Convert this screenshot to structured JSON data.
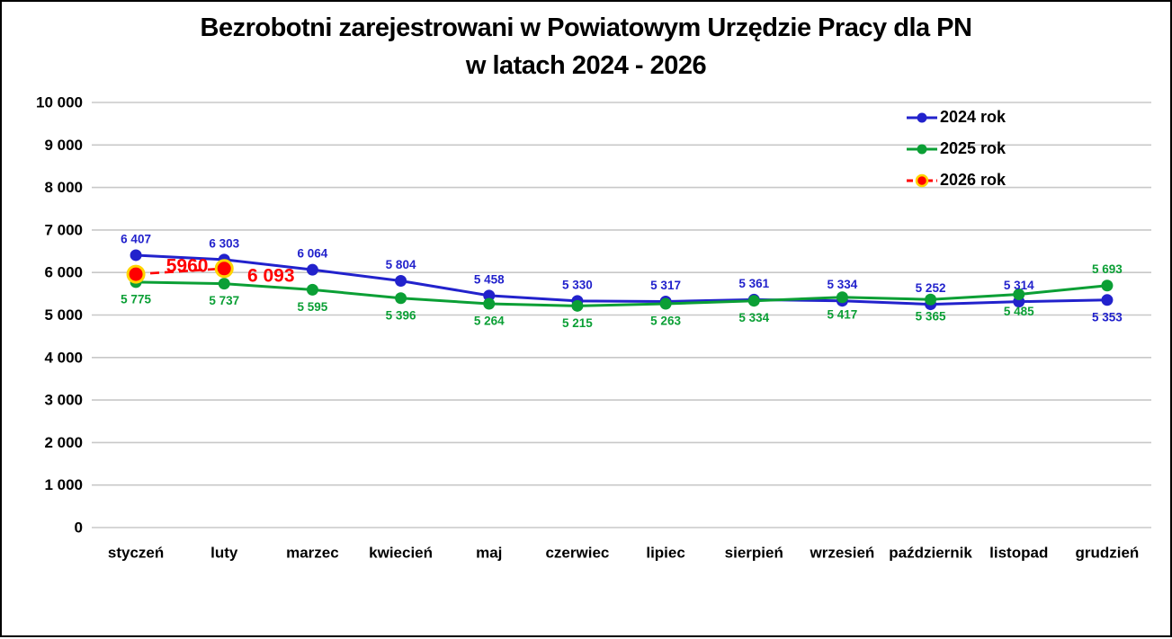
{
  "title": {
    "line1": "Bezrobotni zarejestrowani w Powiatowym Urzędzie Pracy dla PN",
    "line2": "w latach 2024 - 2026"
  },
  "chart_data": {
    "type": "line",
    "title": "Bezrobotni zarejestrowani w Powiatowym Urzędzie Pracy dla PN w latach 2024 - 2026",
    "categories": [
      "styczeń",
      "luty",
      "marzec",
      "kwiecień",
      "maj",
      "czerwiec",
      "lipiec",
      "sierpień",
      "wrzesień",
      "październik",
      "listopad",
      "grudzień"
    ],
    "ylim": [
      0,
      10000
    ],
    "grid": {
      "horizontal": true,
      "color": "#C8C8C8"
    },
    "legend_position": "top-right",
    "y_ticks": [
      {
        "v": 10000,
        "label": "10 000"
      },
      {
        "v": 9000,
        "label": "9 000"
      },
      {
        "v": 8000,
        "label": "8 000"
      },
      {
        "v": 7000,
        "label": "7 000"
      },
      {
        "v": 6000,
        "label": "6 000"
      },
      {
        "v": 5000,
        "label": "5 000"
      },
      {
        "v": 4000,
        "label": "4 000"
      },
      {
        "v": 3000,
        "label": "3 000"
      },
      {
        "v": 2000,
        "label": "2 000"
      },
      {
        "v": 1000,
        "label": "1 000"
      },
      {
        "v": 0,
        "label": "0"
      }
    ],
    "series": [
      {
        "name": "2024 rok",
        "color": "#2222CC",
        "line_style": "solid",
        "values": [
          6407,
          6303,
          6064,
          5804,
          5458,
          5330,
          5317,
          5361,
          5334,
          5252,
          5314,
          5353
        ],
        "labels": [
          "6 407",
          "6 303",
          "6 064",
          "5 804",
          "5 458",
          "5 330",
          "5 317",
          "5 361",
          "5 334",
          "5 252",
          "5 314",
          "5 353"
        ],
        "label_side": [
          "above",
          "above",
          "above",
          "above",
          "above",
          "above",
          "above",
          "above",
          "above",
          "above",
          "above",
          "below"
        ]
      },
      {
        "name": "2025 rok",
        "color": "#0B9F35",
        "line_style": "solid",
        "values": [
          5775,
          5737,
          5595,
          5396,
          5264,
          5215,
          5263,
          5334,
          5417,
          5365,
          5485,
          5693
        ],
        "labels": [
          "5 775",
          "5 737",
          "5 595",
          "5 396",
          "5 264",
          "5 215",
          "5 263",
          "5 334",
          "5 417",
          "5 365",
          "5 485",
          "5 693"
        ],
        "label_side": [
          "below",
          "below",
          "below",
          "below",
          "below",
          "below",
          "below",
          "below",
          "below",
          "below",
          "below",
          "above"
        ]
      },
      {
        "name": "2026 rok",
        "color": "#FF0000",
        "marker_ring": "#FFD400",
        "line_style": "dashed",
        "emphasized": true,
        "values": [
          5960,
          6093,
          null,
          null,
          null,
          null,
          null,
          null,
          null,
          null,
          null,
          null
        ],
        "labels": [
          "5960",
          "6 093",
          "",
          "",
          "",
          "",
          "",
          "",
          "",
          "",
          "",
          ""
        ],
        "label_offsets": [
          [
            57,
            -9
          ],
          [
            52,
            8
          ]
        ]
      }
    ]
  }
}
